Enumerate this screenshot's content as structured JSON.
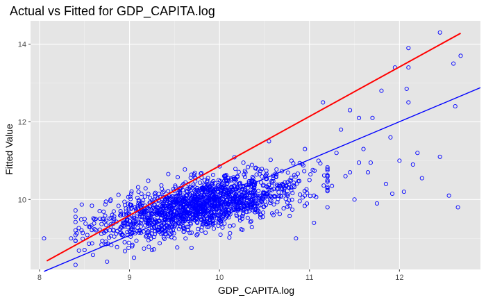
{
  "chart_data": {
    "type": "scatter",
    "title": "Actual vs Fitted for GDP_CAPITA.log",
    "xlabel": "GDP_CAPITA.log",
    "ylabel": "Fitted Value",
    "xlim": [
      7.9,
      12.9
    ],
    "ylim": [
      8.2,
      14.6
    ],
    "x_ticks": [
      8,
      9,
      10,
      11,
      12
    ],
    "y_ticks": [
      10,
      12,
      14
    ],
    "grid": true,
    "legend": "none",
    "colors": {
      "panel": "#e5e5e5",
      "grid_major": "#ffffff",
      "points": "#0000ff",
      "fit_line": "#0000ff",
      "identity_line": "#ff0000"
    },
    "series": [
      {
        "kind": "points",
        "color": "#0000ff",
        "points": [
          [
            8.05,
            9.0
          ],
          [
            8.35,
            9.0
          ],
          [
            8.5,
            8.7
          ],
          [
            8.55,
            9.3
          ],
          [
            8.7,
            9.5
          ],
          [
            8.75,
            8.4
          ],
          [
            8.9,
            9.7
          ],
          [
            9.0,
            9.2
          ],
          [
            9.05,
            8.5
          ],
          [
            9.1,
            10.2
          ],
          [
            9.2,
            9.8
          ],
          [
            9.25,
            8.7
          ],
          [
            9.3,
            9.3
          ],
          [
            9.45,
            10.0
          ],
          [
            9.5,
            9.0
          ],
          [
            9.6,
            10.4
          ],
          [
            9.7,
            9.6
          ],
          [
            9.8,
            9.2
          ],
          [
            9.9,
            10.1
          ],
          [
            10.0,
            9.4
          ],
          [
            10.1,
            10.2
          ],
          [
            10.2,
            10.6
          ],
          [
            10.3,
            9.9
          ],
          [
            10.4,
            10.8
          ],
          [
            10.5,
            10.1
          ],
          [
            10.55,
            11.5
          ],
          [
            10.6,
            9.6
          ],
          [
            10.7,
            10.4
          ],
          [
            10.8,
            11.0
          ],
          [
            10.85,
            9.0
          ],
          [
            10.95,
            11.3
          ],
          [
            11.0,
            10.5
          ],
          [
            11.05,
            9.4
          ],
          [
            11.1,
            11.0
          ],
          [
            11.15,
            12.5
          ],
          [
            11.2,
            9.8
          ],
          [
            11.3,
            11.2
          ],
          [
            11.35,
            11.8
          ],
          [
            11.4,
            10.6
          ],
          [
            11.45,
            12.3
          ],
          [
            11.5,
            10.0
          ],
          [
            11.55,
            12.1
          ],
          [
            11.6,
            11.3
          ],
          [
            11.65,
            10.7
          ],
          [
            11.7,
            12.1
          ],
          [
            11.75,
            9.9
          ],
          [
            11.8,
            12.8
          ],
          [
            11.85,
            10.4
          ],
          [
            11.9,
            11.6
          ],
          [
            11.95,
            13.4
          ],
          [
            12.0,
            11.0
          ],
          [
            12.05,
            10.2
          ],
          [
            12.1,
            13.9
          ],
          [
            12.1,
            12.5
          ],
          [
            12.1,
            13.4
          ],
          [
            12.15,
            10.9
          ],
          [
            12.2,
            11.2
          ],
          [
            12.45,
            11.1
          ],
          [
            12.45,
            14.3
          ],
          [
            12.55,
            10.1
          ],
          [
            12.6,
            13.5
          ],
          [
            12.62,
            12.4
          ],
          [
            12.65,
            9.8
          ],
          [
            12.68,
            13.7
          ],
          [
            12.08,
            12.85
          ],
          [
            11.68,
            10.95
          ],
          [
            11.92,
            10.15
          ],
          [
            11.55,
            10.95
          ],
          [
            11.45,
            10.7
          ],
          [
            11.25,
            10.35
          ],
          [
            11.05,
            10.1
          ],
          [
            12.25,
            10.55
          ]
        ],
        "cloud": {
          "count": 1600,
          "x_center": 9.8,
          "x_spread": 0.55,
          "x_range": [
            8.4,
            11.2
          ],
          "relation": "fitted ≈ 5.35 + 0.46 × actual",
          "y_spread": 0.32
        }
      },
      {
        "kind": "line",
        "name": "",
        "color": "#0000ff",
        "from": [
          8.05,
          8.15
        ],
        "to": [
          12.9,
          12.88
        ]
      },
      {
        "kind": "line",
        "name": "",
        "color": "#ff0000",
        "from": [
          8.08,
          8.42
        ],
        "to": [
          12.68,
          14.28
        ]
      }
    ]
  }
}
